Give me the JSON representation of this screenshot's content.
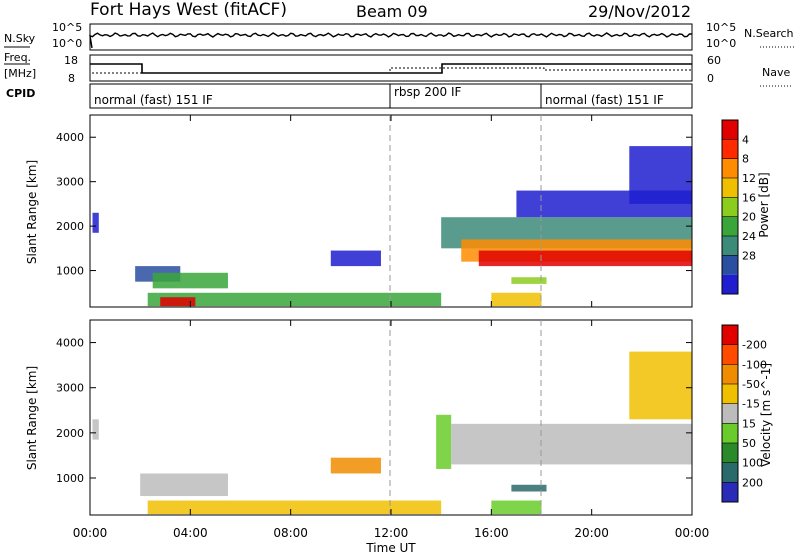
{
  "header": {
    "title": "Fort Hays West (fitACF)",
    "beam": "Beam 09",
    "date": "29/Nov/2012"
  },
  "top_panels": {
    "nsky_label": "N.Sky",
    "nsky_top": "10^5",
    "nsky_bottom": "10^0",
    "nsearch_label": "N.Search",
    "nsearch_top": "10^5",
    "nsearch_bottom": "10^0",
    "freq_label_1": "Freq.",
    "freq_label_2": "[MHz]",
    "freq_top": "18",
    "freq_bottom": "8",
    "nave_label": "Nave",
    "nave_top": "60",
    "nave_bottom": "0",
    "cpid_label": "CPID",
    "cpid_segments": [
      {
        "text": "normal (fast) 151 IF",
        "start_hour": 0
      },
      {
        "text": "rbsp 200 IF",
        "start_hour": 12
      },
      {
        "text": "normal (fast) 151 IF",
        "start_hour": 18
      }
    ]
  },
  "chart_data": [
    {
      "type": "heatmap",
      "name": "Power",
      "xlabel": "",
      "ylabel": "Slant Range [km]",
      "xlim": [
        0,
        24
      ],
      "ylim": [
        180,
        4500
      ],
      "yticks": [
        1000,
        2000,
        3000,
        4000
      ],
      "colorbar_label": "Power [dB]",
      "colorbar_ticks": [
        "4",
        "8",
        "12",
        "16",
        "20",
        "24",
        "28"
      ],
      "colorbar_colors": [
        "#1f1fd0",
        "#2a4ea0",
        "#3c8a78",
        "#3aa63a",
        "#8ccc1f",
        "#f0c000",
        "#ff8c00",
        "#ff2a00",
        "#e00000"
      ],
      "regions": [
        {
          "x0": 0.1,
          "x1": 0.35,
          "r0": 1850,
          "r1": 2300,
          "level": 0
        },
        {
          "x0": 1.8,
          "x1": 3.6,
          "r0": 750,
          "r1": 1100,
          "level": 1
        },
        {
          "x0": 2.5,
          "x1": 5.5,
          "r0": 600,
          "r1": 950,
          "level": 3
        },
        {
          "x0": 2.3,
          "x1": 14,
          "r0": 200,
          "r1": 500,
          "level": 3
        },
        {
          "x0": 2.8,
          "x1": 4.2,
          "r0": 200,
          "r1": 400,
          "level": 8
        },
        {
          "x0": 9.6,
          "x1": 11.6,
          "r0": 1100,
          "r1": 1450,
          "level": 0
        },
        {
          "x0": 14.0,
          "x1": 24,
          "r0": 1500,
          "r1": 2200,
          "level": 2
        },
        {
          "x0": 14.8,
          "x1": 24,
          "r0": 1200,
          "r1": 1700,
          "level": 6
        },
        {
          "x0": 15.5,
          "x1": 24,
          "r0": 1100,
          "r1": 1450,
          "level": 8
        },
        {
          "x0": 16.8,
          "x1": 18.2,
          "r0": 700,
          "r1": 850,
          "level": 4
        },
        {
          "x0": 16.0,
          "x1": 18.0,
          "r0": 200,
          "r1": 500,
          "level": 5
        },
        {
          "x0": 17.0,
          "x1": 24,
          "r0": 2200,
          "r1": 2800,
          "level": 0
        },
        {
          "x0": 21.5,
          "x1": 24,
          "r0": 2500,
          "r1": 3800,
          "level": 0
        }
      ]
    },
    {
      "type": "heatmap",
      "name": "Velocity",
      "xlabel": "Time UT",
      "ylabel": "Slant Range [km]",
      "xlim": [
        0,
        24
      ],
      "ylim": [
        180,
        4500
      ],
      "yticks": [
        1000,
        2000,
        3000,
        4000
      ],
      "xticks": [
        "00:00",
        "04:00",
        "08:00",
        "12:00",
        "16:00",
        "20:00",
        "00:00"
      ],
      "colorbar_label": "Velocity [m s^-1]",
      "colorbar_ticks": [
        "200",
        "100",
        "50",
        "15",
        "-15",
        "-50",
        "-100",
        "-200"
      ],
      "colorbar_colors": [
        "#2a2ab8",
        "#2a6a6a",
        "#2a8a2a",
        "#6acc2a",
        "#bcbcbc",
        "#f0c000",
        "#f08c00",
        "#ff4a00",
        "#e00000"
      ],
      "regions": [
        {
          "x0": 0.1,
          "x1": 0.35,
          "r0": 1850,
          "r1": 2300,
          "level": 4
        },
        {
          "x0": 2.0,
          "x1": 5.5,
          "r0": 600,
          "r1": 1100,
          "level": 4
        },
        {
          "x0": 2.3,
          "x1": 14,
          "r0": 200,
          "r1": 500,
          "level": 5
        },
        {
          "x0": 9.6,
          "x1": 11.6,
          "r0": 1100,
          "r1": 1450,
          "level": 6
        },
        {
          "x0": 13.8,
          "x1": 14.4,
          "r0": 1200,
          "r1": 2400,
          "level": 3
        },
        {
          "x0": 14.4,
          "x1": 24,
          "r0": 1300,
          "r1": 2200,
          "level": 4
        },
        {
          "x0": 16.0,
          "x1": 18.0,
          "r0": 200,
          "r1": 500,
          "level": 3
        },
        {
          "x0": 16.8,
          "x1": 18.2,
          "r0": 700,
          "r1": 850,
          "level": 1
        },
        {
          "x0": 21.5,
          "x1": 24,
          "r0": 2300,
          "r1": 3800,
          "level": 5
        }
      ]
    }
  ]
}
